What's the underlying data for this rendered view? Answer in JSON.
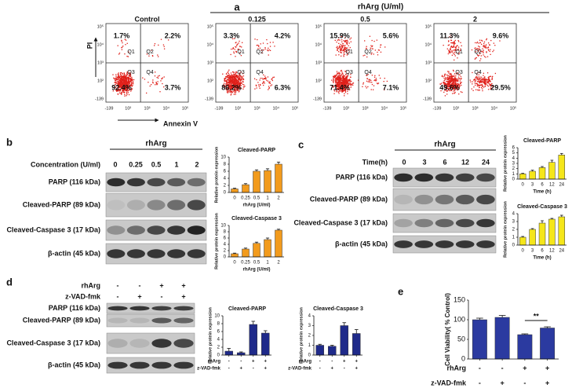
{
  "panels": {
    "a": {
      "label": "a",
      "group_title": "rhArg (U/ml)",
      "y_axis": "PI",
      "x_axis": "Annexin V",
      "axis_ticks": [
        "-139",
        "10²",
        "10³",
        "10⁴",
        "10⁵"
      ],
      "quadrant_names": [
        "Q1",
        "Q2",
        "Q3",
        "Q4"
      ],
      "plots": [
        {
          "title": "Control",
          "percents": [
            "1.7%",
            "2.2%",
            "92.4%",
            "3.7%"
          ]
        },
        {
          "title": "0.125",
          "percents": [
            "3.3%",
            "4.2%",
            "86.2%",
            "6.3%"
          ]
        },
        {
          "title": "0.5",
          "percents": [
            "15.9%",
            "5.6%",
            "71.4%",
            "7.1%"
          ]
        },
        {
          "title": "2",
          "percents": [
            "11.3%",
            "9.6%",
            "49.6%",
            "29.5%"
          ]
        }
      ]
    },
    "b": {
      "label": "b",
      "treatment": "rhArg",
      "lane_header": "Concentration (U/ml)",
      "lanes": [
        "0",
        "0.25",
        "0.5",
        "1",
        "2"
      ],
      "rows": [
        "PARP (116 kDa)",
        "Cleaved-PARP (89 kDa)",
        "Cleaved-Caspase 3 (17 kDa)",
        "β-actin (45 kDa)"
      ]
    },
    "c": {
      "label": "c",
      "treatment": "rhArg",
      "lane_header": "Time(h)",
      "lanes": [
        "0",
        "3",
        "6",
        "12",
        "24"
      ],
      "rows": [
        "PARP (116 kDa)",
        "Cleaved-PARP (89 kDa)",
        "Cleaved-Caspase 3 (17 kDa)",
        "β-actin (45 kDa)"
      ]
    },
    "d": {
      "label": "d",
      "treatments": [
        {
          "name": "rhArg",
          "signs": [
            "-",
            "-",
            "+",
            "+"
          ]
        },
        {
          "name": "z-VAD-fmk",
          "signs": [
            "-",
            "+",
            "-",
            "+"
          ]
        }
      ],
      "rows": [
        "PARP (116 kDa)",
        "Cleaved-PARP (89 kDa)",
        "Cleaved-Caspase 3 (17 kDa)",
        "β-actin (45 kDa)"
      ]
    },
    "e": {
      "label": "e"
    }
  },
  "chart_data": [
    {
      "type": "bar",
      "title": "Cleaved-PARP",
      "y_label": "Relative protein expression",
      "x_label": "rhArg (U/ml)",
      "categories": [
        "0",
        "0.25",
        "0.5",
        "1",
        "2"
      ],
      "values": [
        1,
        2.2,
        6,
        6.2,
        8
      ],
      "errors": [
        0.2,
        0.3,
        0.4,
        0.5,
        0.6
      ],
      "color": "#f29b1d",
      "ylim": [
        0,
        10
      ],
      "yticks": [
        0,
        2,
        4,
        6,
        8,
        10
      ]
    },
    {
      "type": "bar",
      "title": "Cleaved-Caspase 3",
      "y_label": "Relative protein expression",
      "x_label": "rhArg (U/ml)",
      "categories": [
        "0",
        "0.25",
        "0.5",
        "1",
        "2"
      ],
      "values": [
        1,
        2.5,
        4.3,
        5.5,
        8.5
      ],
      "errors": [
        0.2,
        0.3,
        0.4,
        0.5,
        0.3
      ],
      "color": "#f29b1d",
      "ylim": [
        0,
        10
      ],
      "yticks": [
        0,
        2,
        4,
        6,
        8,
        10
      ]
    },
    {
      "type": "bar",
      "title": "Cleaved-PARP",
      "y_label": "Relative protein expression",
      "x_label": "Time (h)",
      "categories": [
        "0",
        "3",
        "6",
        "12",
        "24"
      ],
      "values": [
        1,
        1.5,
        2.2,
        3.2,
        4.6
      ],
      "errors": [
        0.1,
        0.2,
        0.2,
        0.4,
        0.3
      ],
      "color": "#f5e61a",
      "ylim": [
        0,
        6
      ],
      "yticks": [
        0,
        1,
        2,
        3,
        4,
        5,
        6
      ]
    },
    {
      "type": "bar",
      "title": "Cleaved-Caspase 3",
      "y_label": "Relative protein expression",
      "x_label": "Time (h)",
      "categories": [
        "0",
        "3",
        "6",
        "12",
        "24"
      ],
      "values": [
        1,
        2,
        2.8,
        3.3,
        3.6
      ],
      "errors": [
        0.1,
        0.1,
        0.3,
        0.1,
        0.2
      ],
      "color": "#f5e61a",
      "ylim": [
        0,
        4
      ],
      "yticks": [
        0,
        1,
        2,
        3,
        4
      ]
    },
    {
      "type": "bar",
      "title": "Cleaved-PARP",
      "y_label": "Relative protein expression",
      "categories": [
        null,
        null,
        null,
        null
      ],
      "values": [
        1,
        0.6,
        7.8,
        5.6
      ],
      "errors": [
        0.7,
        0.2,
        0.8,
        0.6
      ],
      "treatments": [
        {
          "name": "rhArg",
          "signs": [
            "-",
            "-",
            "+",
            "+"
          ]
        },
        {
          "name": "z-VAD-fmk",
          "signs": [
            "-",
            "+",
            "-",
            "+"
          ]
        }
      ],
      "color": "#1f2a8a",
      "ylim": [
        0,
        10
      ],
      "yticks": [
        0,
        2,
        4,
        6,
        8,
        10
      ]
    },
    {
      "type": "bar",
      "title": "Cleaved-Caspase 3",
      "y_label": "Relative protein expression",
      "categories": [
        null,
        null,
        null,
        null
      ],
      "values": [
        1,
        0.9,
        3,
        2.2
      ],
      "errors": [
        0.1,
        0.1,
        0.3,
        0.4
      ],
      "treatments": [
        {
          "name": "rhArg",
          "signs": [
            "-",
            "-",
            "+",
            "+"
          ]
        },
        {
          "name": "z-VAD-fmk",
          "signs": [
            "-",
            "+",
            "-",
            "+"
          ]
        }
      ],
      "color": "#1f2a8a",
      "ylim": [
        0,
        4
      ],
      "yticks": [
        0,
        1,
        2,
        3,
        4
      ]
    },
    {
      "type": "bar",
      "y_label": "Cell Viability( % Control)",
      "annotation": "**",
      "categories": [
        null,
        null,
        null,
        null
      ],
      "values": [
        100,
        106,
        62,
        79
      ],
      "errors": [
        4,
        5,
        2,
        3
      ],
      "treatments": [
        {
          "name": "rhArg",
          "signs": [
            "-",
            "-",
            "+",
            "+"
          ]
        },
        {
          "name": "z-VAD-fmk",
          "signs": [
            "-",
            "+",
            "-",
            "+"
          ]
        }
      ],
      "color": "#2b3aa0",
      "ylim": [
        0,
        150
      ],
      "yticks": [
        0,
        50,
        100,
        150
      ]
    }
  ]
}
